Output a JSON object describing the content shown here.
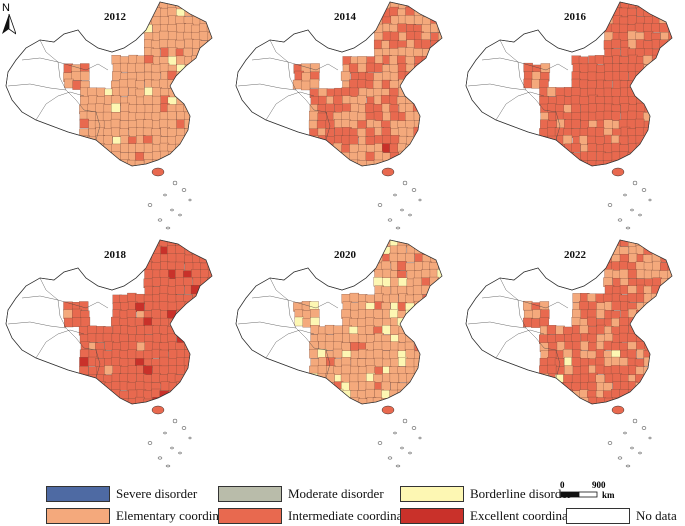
{
  "panels": [
    {
      "year": "2012",
      "mix": {
        "elementary": 0.88,
        "intermediate": 0.08,
        "borderline": 0.04,
        "excellent": 0.0
      }
    },
    {
      "year": "2014",
      "mix": {
        "elementary": 0.55,
        "intermediate": 0.44,
        "borderline": 0.0,
        "excellent": 0.01
      }
    },
    {
      "year": "2016",
      "mix": {
        "elementary": 0.12,
        "intermediate": 0.88,
        "borderline": 0.0,
        "excellent": 0.0
      }
    },
    {
      "year": "2018",
      "mix": {
        "elementary": 0.03,
        "intermediate": 0.93,
        "borderline": 0.0,
        "excellent": 0.04
      }
    },
    {
      "year": "2020",
      "mix": {
        "elementary": 0.82,
        "intermediate": 0.07,
        "borderline": 0.11,
        "excellent": 0.0
      }
    },
    {
      "year": "2022",
      "mix": {
        "elementary": 0.38,
        "intermediate": 0.61,
        "borderline": 0.01,
        "excellent": 0.0
      }
    }
  ],
  "legend": [
    {
      "key": "severe",
      "label": "Severe disorder",
      "color": "#4e6aa3"
    },
    {
      "key": "moderate",
      "label": "Moderate disorder",
      "color": "#b9bcaa"
    },
    {
      "key": "borderline",
      "label": "Borderline  disorder",
      "color": "#fdf7b3"
    },
    {
      "key": "elementary",
      "label": "Elementary coordinate",
      "color": "#f4a97c"
    },
    {
      "key": "intermediate",
      "label": "Intermediate coordinate",
      "color": "#e8694f"
    },
    {
      "key": "excellent",
      "label": "Excellent coordinate",
      "color": "#c9312a"
    },
    {
      "key": "nodata",
      "label": "No data",
      "color": "#ffffff"
    }
  ],
  "scale": {
    "start": "0",
    "end": "900",
    "unit": "km"
  },
  "north": "N"
}
